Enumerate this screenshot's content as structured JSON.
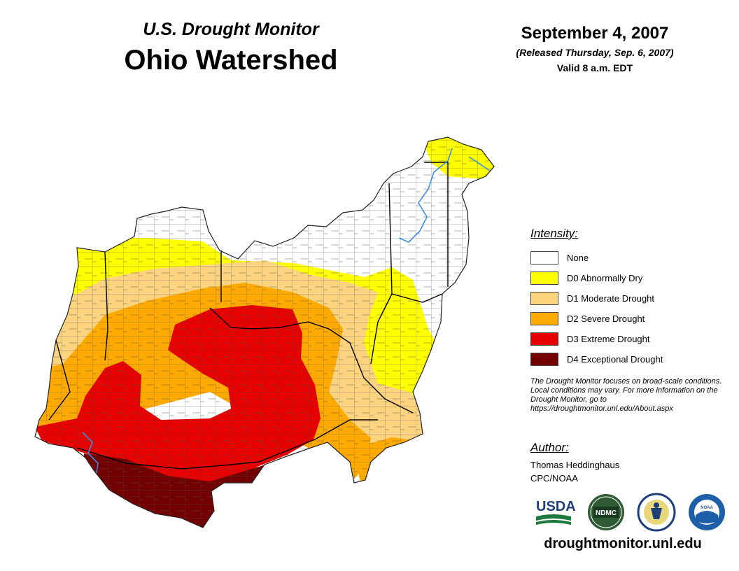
{
  "header": {
    "subtitle": "U.S. Drought Monitor",
    "title": "Ohio Watershed",
    "date": "September 4, 2007",
    "released": "(Released Thursday, Sep. 6, 2007)",
    "valid": "Valid 8 a.m. EDT"
  },
  "legend": {
    "title": "Intensity:",
    "items": [
      {
        "label": "None",
        "color": "#ffffff"
      },
      {
        "label": "D0 Abnormally Dry",
        "color": "#ffff00"
      },
      {
        "label": "D1 Moderate Drought",
        "color": "#fcd37f"
      },
      {
        "label": "D2 Severe Drought",
        "color": "#ffaa00"
      },
      {
        "label": "D3 Extreme Drought",
        "color": "#e60000"
      },
      {
        "label": "D4 Exceptional Drought",
        "color": "#730000"
      }
    ]
  },
  "note": "The Drought Monitor focuses on broad-scale conditions. Local conditions may vary. For more information on the Drought Monitor, go to https://droughtmonitor.unl.edu/About.aspx",
  "author": {
    "title": "Author:",
    "name": "Thomas Heddinghaus",
    "org": "CPC/NOAA"
  },
  "logos": {
    "usda": "USDA",
    "ndmc": "NDMC",
    "noaa": "NOAA"
  },
  "footer_url": "droughtmonitor.unl.edu"
}
